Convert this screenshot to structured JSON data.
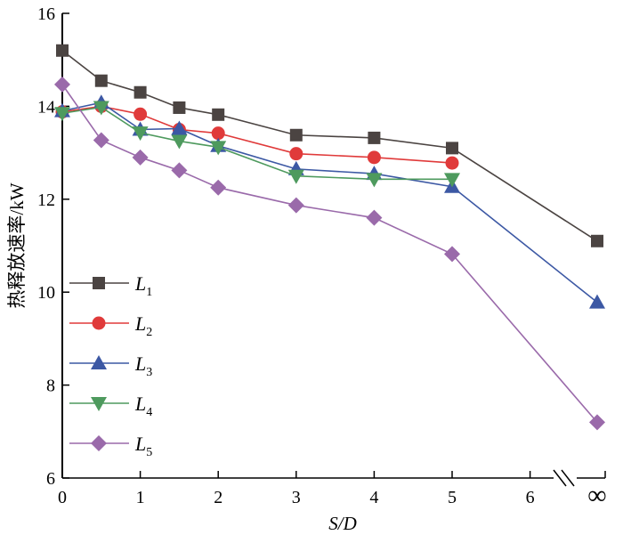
{
  "chart_data": {
    "type": "line",
    "title": "",
    "xlabel": "S/D",
    "ylabel": "热释放速率/kW",
    "ylim": [
      6,
      16
    ],
    "yticks": [
      "6",
      "8",
      "10",
      "12",
      "14",
      "16"
    ],
    "xticks": [
      "0",
      "1",
      "2",
      "3",
      "4",
      "5",
      "6",
      "∞"
    ],
    "axis_break": "between 6 and ∞",
    "grid": false,
    "legend_placement": "bottom-left",
    "x": [
      0,
      0.5,
      1,
      1.5,
      2,
      3,
      4,
      5,
      "∞"
    ],
    "series": [
      {
        "name": "L",
        "sub": "1",
        "marker": "square",
        "color": "#4b4442",
        "values": [
          15.2,
          14.55,
          14.3,
          13.97,
          13.82,
          13.38,
          13.32,
          13.1,
          11.1
        ]
      },
      {
        "name": "L",
        "sub": "2",
        "marker": "circle",
        "color": "#e03a3a",
        "values": [
          13.88,
          14.0,
          13.83,
          13.5,
          13.42,
          12.98,
          12.9,
          12.78,
          null
        ]
      },
      {
        "name": "L",
        "sub": "3",
        "marker": "triangle-up",
        "color": "#3c58a4",
        "values": [
          13.9,
          14.08,
          13.5,
          13.52,
          13.15,
          12.65,
          12.55,
          12.27,
          9.78
        ]
      },
      {
        "name": "L",
        "sub": "4",
        "marker": "triangle-down",
        "color": "#4e9a5e",
        "values": [
          13.85,
          13.98,
          13.43,
          13.25,
          13.12,
          12.5,
          12.43,
          12.43,
          null
        ]
      },
      {
        "name": "L",
        "sub": "5",
        "marker": "diamond",
        "color": "#9a6aaa",
        "values": [
          14.47,
          13.27,
          12.9,
          12.62,
          12.25,
          11.87,
          11.6,
          10.82,
          7.2
        ]
      }
    ]
  }
}
